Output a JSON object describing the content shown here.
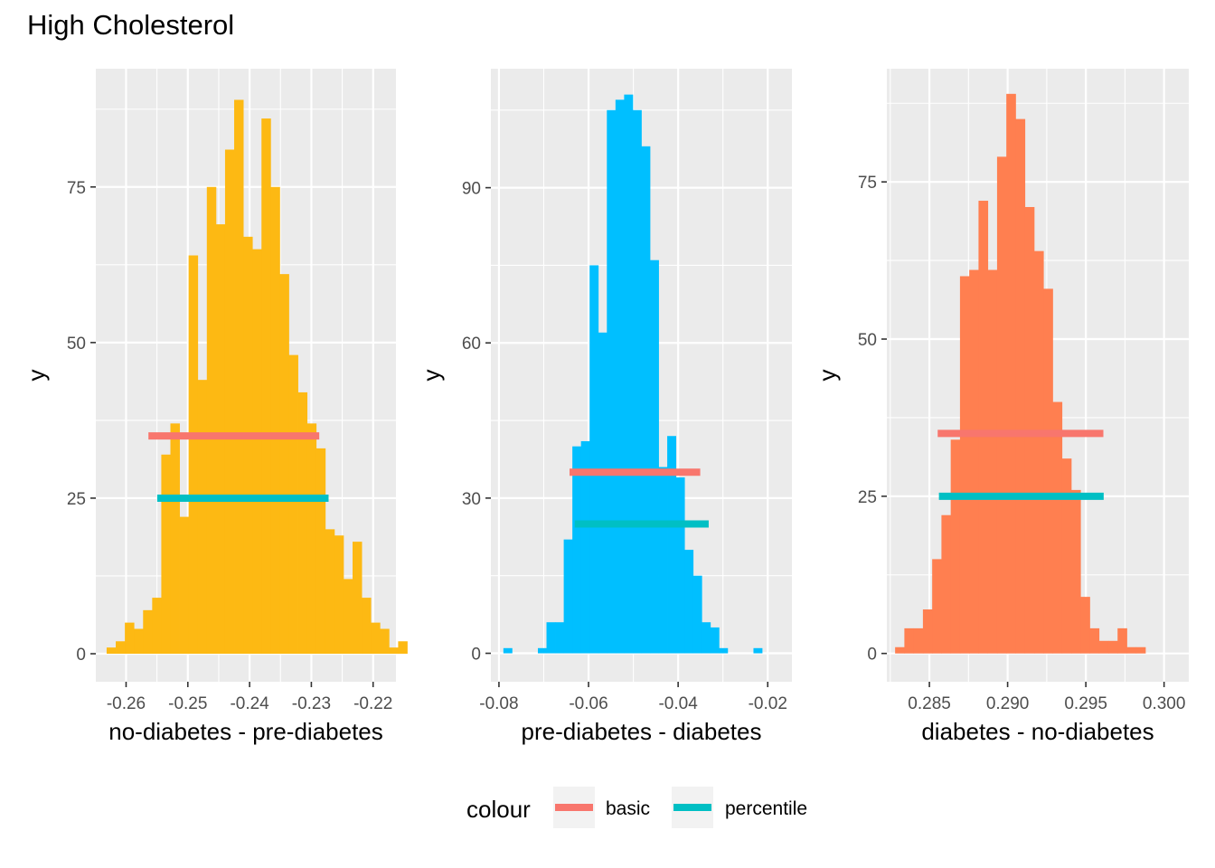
{
  "title": "High Cholesterol",
  "chart_data": [
    {
      "type": "bar",
      "title": "",
      "xlabel": "no-diabetes - pre-diabetes",
      "ylabel": "y",
      "fill": "#FDB913",
      "xlim": [
        -0.2649,
        -0.2163
      ],
      "ylim": [
        -4.5,
        94
      ],
      "xticks": [
        -0.26,
        -0.25,
        -0.24,
        -0.23,
        -0.22
      ],
      "xtick_labels": [
        "-0.26",
        "-0.25",
        "-0.24",
        "-0.23",
        "-0.22"
      ],
      "yticks": [
        0,
        25,
        50,
        75
      ],
      "ytick_labels": [
        "0",
        "25",
        "50",
        "75"
      ],
      "bin_start": -0.26315,
      "bin_width": 0.001475,
      "counts": [
        1,
        2,
        5,
        4,
        7,
        9,
        32,
        37,
        22,
        64,
        44,
        75,
        69,
        81,
        89,
        67,
        65,
        86,
        75,
        61,
        48,
        42,
        37,
        33,
        20,
        19,
        12,
        18,
        9,
        5,
        4,
        1,
        2
      ],
      "intervals": [
        {
          "name": "basic",
          "y": 35,
          "xmin": -0.25638,
          "xmax": -0.22872
        },
        {
          "name": "percentile",
          "y": 25,
          "xmin": -0.25496,
          "xmax": -0.22721
        }
      ]
    },
    {
      "type": "bar",
      "title": "",
      "xlabel": "pre-diabetes - diabetes",
      "ylabel": "y",
      "fill": "#00BFFF",
      "xlim": [
        -0.0818,
        -0.0146
      ],
      "ylim": [
        -5.5,
        113
      ],
      "xticks": [
        -0.08,
        -0.06,
        -0.04,
        -0.02
      ],
      "xtick_labels": [
        "-0.08",
        "-0.06",
        "-0.04",
        "-0.02"
      ],
      "yticks": [
        0,
        30,
        60,
        90
      ],
      "ytick_labels": [
        "0",
        "30",
        "60",
        "90"
      ],
      "bin_start": -0.07901,
      "bin_width": 0.001925,
      "counts": [
        1,
        0,
        0,
        0,
        1,
        6,
        6,
        22,
        40,
        41,
        75,
        62,
        105,
        107,
        108,
        105,
        98,
        76,
        36,
        42,
        34,
        20,
        15,
        6,
        5,
        1,
        0,
        0,
        0,
        1
      ],
      "intervals": [
        {
          "name": "basic",
          "y": 35,
          "xmin": -0.06424,
          "xmax": -0.03507
        },
        {
          "name": "percentile",
          "y": 25,
          "xmin": -0.06308,
          "xmax": -0.03318
        }
      ]
    },
    {
      "type": "bar",
      "title": "",
      "xlabel": "diabetes - no-diabetes",
      "ylabel": "y",
      "fill": "#FF7F50",
      "xlim": [
        0.28228,
        0.30158
      ],
      "ylim": [
        -4.5,
        93
      ],
      "xticks": [
        0.285,
        0.29,
        0.295,
        0.3
      ],
      "xtick_labels": [
        "0.285",
        "0.290",
        "0.295",
        "0.300"
      ],
      "yticks": [
        0,
        25,
        50,
        75
      ],
      "ytick_labels": [
        "0",
        "25",
        "50",
        "75"
      ],
      "bin_start": 0.282808,
      "bin_width": 0.0005925,
      "counts": [
        1,
        4,
        4,
        7,
        15,
        22,
        34,
        60,
        61,
        72,
        61,
        79,
        89,
        85,
        71,
        64,
        58,
        40,
        31,
        26,
        9,
        4,
        2,
        2,
        4,
        1,
        1
      ],
      "intervals": [
        {
          "name": "basic",
          "y": 35,
          "xmin": 0.28553,
          "xmax": 0.29612
        },
        {
          "name": "percentile",
          "y": 25,
          "xmin": 0.28561,
          "xmax": 0.29614
        }
      ]
    }
  ],
  "legend": {
    "title": "colour",
    "items": [
      {
        "label": "basic",
        "color": "#F8766D"
      },
      {
        "label": "percentile",
        "color": "#00BFC4"
      }
    ]
  }
}
